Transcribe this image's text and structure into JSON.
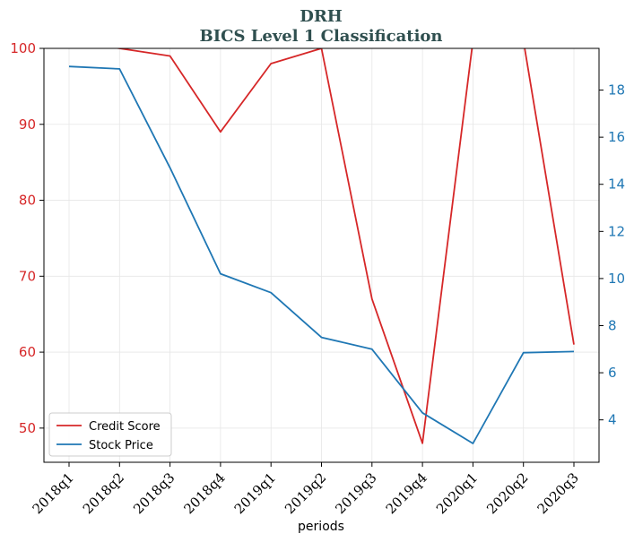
{
  "chart_data": {
    "type": "line",
    "title": "DRH",
    "subtitle": "BICS Level 1 Classification",
    "xlabel": "periods",
    "categories": [
      "2018q1",
      "2018q2",
      "2018q3",
      "2018q4",
      "2019q1",
      "2019q2",
      "2019q3",
      "2019q4",
      "2020q1",
      "2020q2",
      "2020q3"
    ],
    "y_left": {
      "ylim": [
        45.5,
        100
      ],
      "ticks": [
        50,
        60,
        70,
        80,
        90,
        100
      ],
      "color": "#d62728"
    },
    "y_right": {
      "ylim": [
        2.2,
        19.77
      ],
      "ticks": [
        4,
        6,
        8,
        10,
        12,
        14,
        16,
        18
      ],
      "color": "#1f77b4"
    },
    "series": [
      {
        "name": "Credit Score",
        "axis": "left",
        "color": "#d62728",
        "values": [
          101,
          100,
          99,
          89,
          98,
          100,
          67,
          48,
          101,
          101,
          61
        ]
      },
      {
        "name": "Stock Price",
        "axis": "right",
        "color": "#1f77b4",
        "values": [
          19.0,
          18.9,
          14.7,
          10.2,
          9.4,
          7.5,
          7.0,
          4.3,
          3.0,
          6.85,
          6.9
        ]
      }
    ],
    "grid": true,
    "legend_position": "lower-left"
  }
}
